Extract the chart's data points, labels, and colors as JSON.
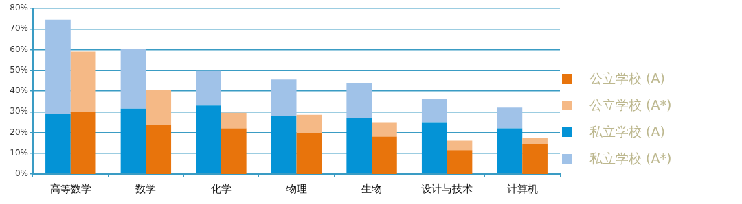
{
  "chart_data": [
    {
      "type": "bar",
      "stacked": true,
      "categories": [
        null,
        null,
        null,
        null,
        null,
        null,
        null
      ],
      "series": [
        {
          "name": "私立学校 (A)",
          "color": "#0493d6",
          "values": [
            29,
            31.5,
            33,
            28,
            27,
            25,
            22
          ]
        },
        {
          "name": "私立学校 (A*)",
          "color": "#a0c2e8",
          "values": [
            45.5,
            29,
            17,
            17.5,
            17,
            11,
            10
          ]
        }
      ],
      "ylim": [
        0,
        80
      ],
      "yticks": [
        {
          "value": 0,
          "label": "0%"
        },
        {
          "value": 10,
          "label": "10%"
        },
        {
          "value": 20,
          "label": "20%"
        },
        {
          "value": 30,
          "label": "30%"
        },
        {
          "value": 40,
          "label": "40%"
        },
        {
          "value": 50,
          "label": "50%"
        },
        {
          "value": 60,
          "label": "60%"
        },
        {
          "value": 70,
          "label": "70%"
        },
        {
          "value": 80,
          "label": "80%"
        }
      ],
      "grid": "y",
      "legend": "right",
      "tick_labels": "y"
    },
    {
      "type": "bar",
      "stacked": true,
      "categories": [
        "高等数学",
        "数学",
        "化学",
        "物理",
        "生物",
        "设计与技术",
        "计算机"
      ],
      "series": [
        {
          "name": "公立学校 (A)",
          "color": "#e8740c",
          "values": [
            30,
            23.5,
            22,
            19.5,
            18,
            11.5,
            14.5
          ]
        },
        {
          "name": "公立学校 (A*)",
          "color": "#f5b986",
          "values": [
            29,
            17,
            7.5,
            9,
            7,
            4.5,
            3
          ]
        }
      ],
      "ylim": [
        0,
        80
      ],
      "legend": "right",
      "tick_labels": "x"
    }
  ]
}
